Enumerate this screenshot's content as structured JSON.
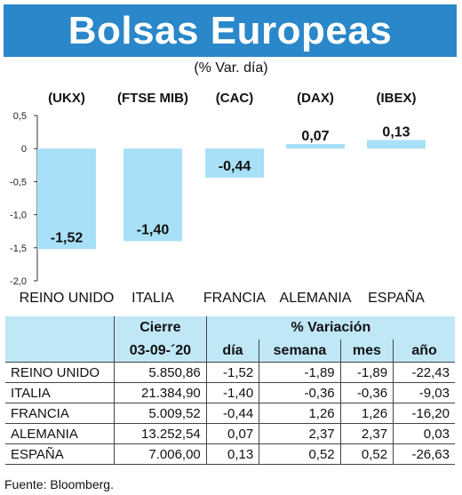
{
  "header": {
    "title": "Bolsas Europeas",
    "subtitle": "(% Var. día)"
  },
  "chart_data": {
    "type": "bar",
    "tickers": [
      "(UKX)",
      "(FTSE MIB)",
      "(CAC)",
      "(DAX)",
      "(IBEX)"
    ],
    "categories": [
      "REINO UNIDO",
      "ITALIA",
      "FRANCIA",
      "ALEMANIA",
      "ESPAÑA"
    ],
    "values": [
      -1.52,
      -1.4,
      -0.44,
      0.07,
      0.13
    ],
    "value_labels": [
      "-1,52",
      "-1,40",
      "-0,44",
      "0,07",
      "0,13"
    ],
    "ylim": [
      -2.0,
      0.5
    ],
    "yticks": [
      0.5,
      0,
      -0.5,
      -1.0,
      -1.5,
      -2.0
    ],
    "ytick_labels": [
      "0,5",
      "0",
      "-0,5",
      "-1,0",
      "-1,5",
      "-2,0"
    ],
    "bar_color": "#a8e0f7",
    "grid": false
  },
  "table": {
    "header_cierre": "Cierre",
    "header_variacion": "% Variación",
    "date": "03-09-´20",
    "columns": [
      "día",
      "semana",
      "mes",
      "año"
    ],
    "rows": [
      {
        "name": "REINO UNIDO",
        "cierre": "5.850,86",
        "dia": "-1,52",
        "semana": "-1,89",
        "mes": "-1,89",
        "anio": "-22,43"
      },
      {
        "name": "ITALIA",
        "cierre": "21.384,90",
        "dia": "-1,40",
        "semana": "-0,36",
        "mes": "-0,36",
        "anio": "-9,03"
      },
      {
        "name": "FRANCIA",
        "cierre": "5.009,52",
        "dia": "-0,44",
        "semana": "1,26",
        "mes": "1,26",
        "anio": "-16,20"
      },
      {
        "name": "ALEMANIA",
        "cierre": "13.252,54",
        "dia": "0,07",
        "semana": "2,37",
        "mes": "2,37",
        "anio": "0,03"
      },
      {
        "name": "ESPAÑA",
        "cierre": "7.006,00",
        "dia": "0,13",
        "semana": "0,52",
        "mes": "0,52",
        "anio": "-26,63"
      }
    ]
  },
  "footer": {
    "source": "Fuente: Bloomberg."
  },
  "colors": {
    "banner": "#2a87c9",
    "table_header": "#bfe7f6"
  }
}
